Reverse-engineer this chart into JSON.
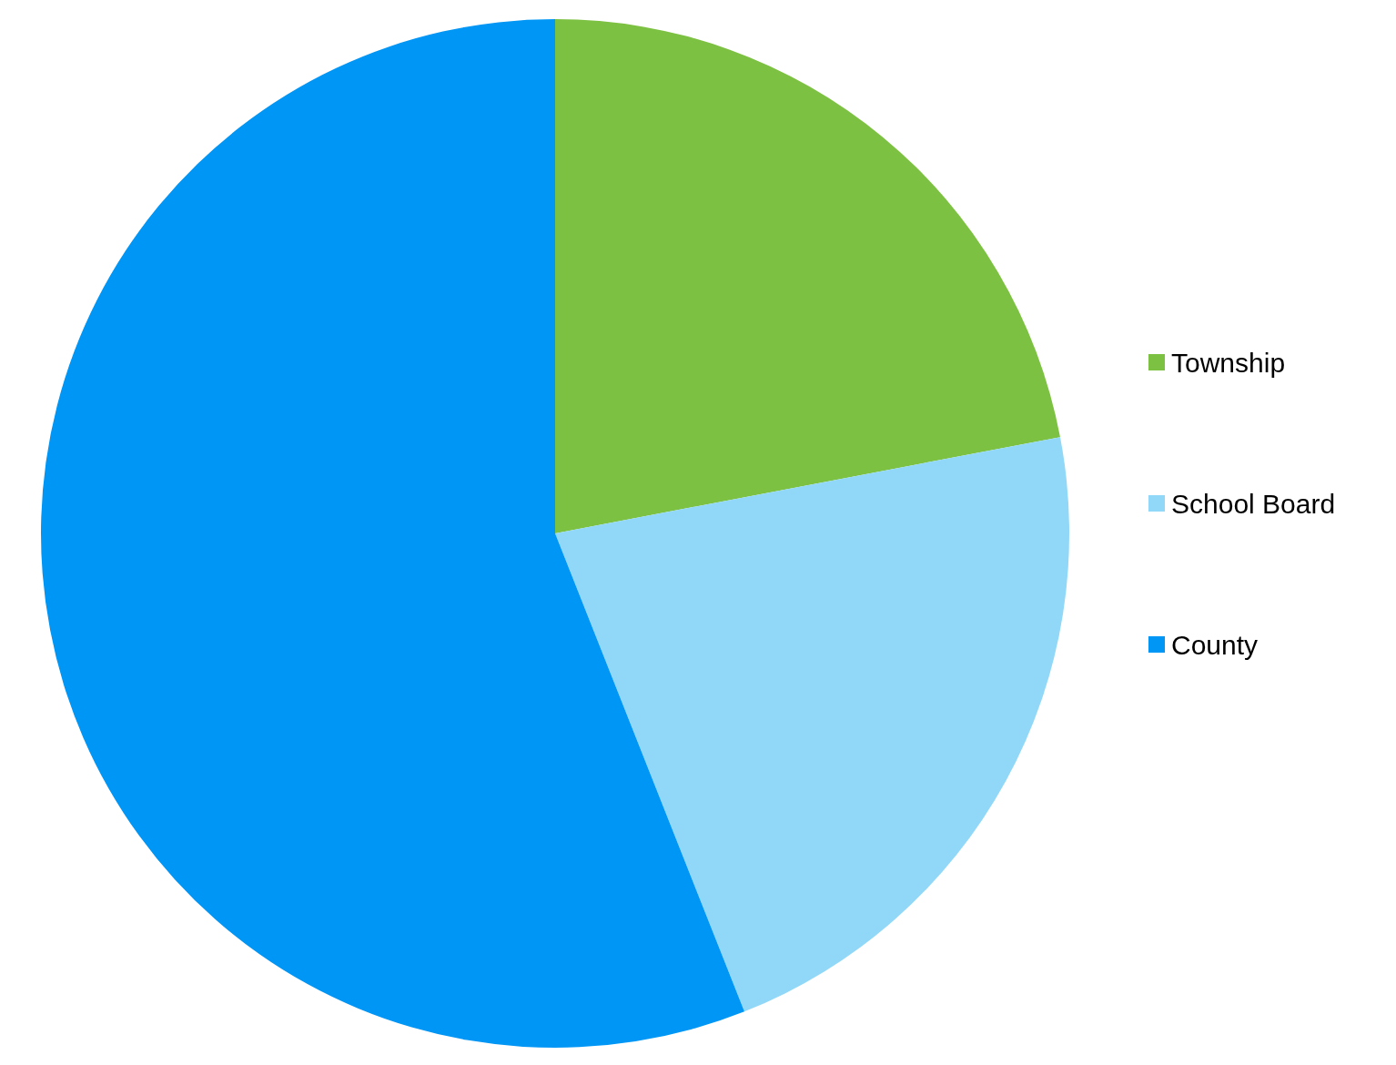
{
  "chart_data": {
    "type": "pie",
    "categories": [
      "Township",
      "School Board",
      "County"
    ],
    "values": [
      22,
      22,
      56
    ],
    "colors": [
      "#7dc142",
      "#91d7f7",
      "#0096f6"
    ],
    "legend": "right"
  }
}
